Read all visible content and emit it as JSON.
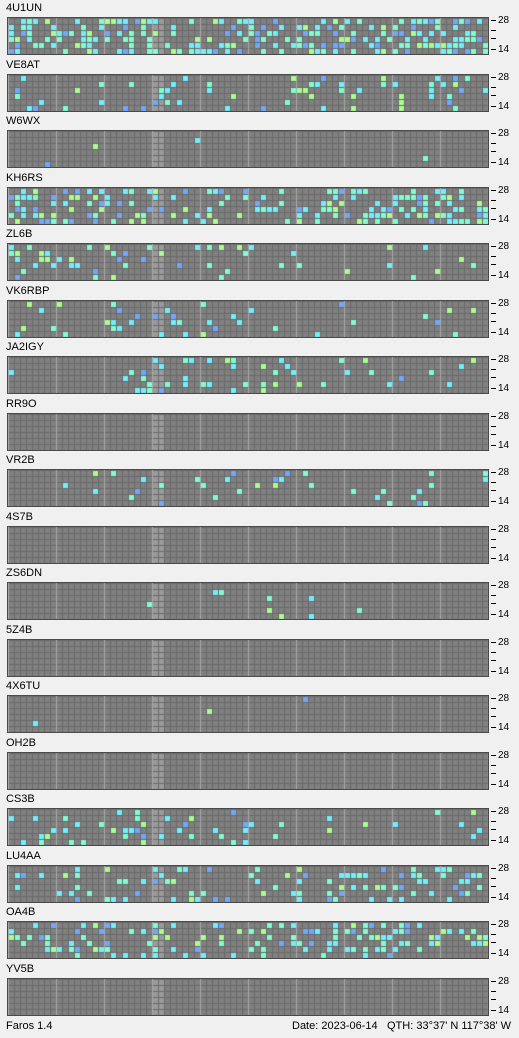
{
  "app": {
    "version_label": "Faros 1.4"
  },
  "footer": {
    "date_label": "Date: 2023-06-14",
    "qth_label": "QTH: 33°37' N  117°38' W"
  },
  "scale": {
    "top": "28",
    "bottom": "14"
  },
  "colors": {
    "background_grid": "#6a6a6a",
    "cell_empty": "#808080",
    "gridline": "#a8a8a8",
    "now_marker": "#9a9a9a",
    "signal_cyan": "#6ef0ff",
    "signal_aqua": "#7fffd0",
    "signal_green": "#a8ff8c",
    "signal_blue": "#6fa8ff",
    "signal_violet": "#8080ff"
  },
  "beacons": [
    {
      "name": "4U1UN",
      "density": 0.45,
      "seed": 11,
      "bias": "wide"
    },
    {
      "name": "VE8AT",
      "density": 0.14,
      "seed": 23,
      "bias": "wide"
    },
    {
      "name": "W6WX",
      "density": 0.01,
      "seed": 37,
      "bias": "sparse"
    },
    {
      "name": "KH6RS",
      "density": 0.4,
      "seed": 41,
      "bias": "wide"
    },
    {
      "name": "ZL6B",
      "density": 0.15,
      "seed": 53,
      "bias": "early"
    },
    {
      "name": "VK6RBP",
      "density": 0.09,
      "seed": 67,
      "bias": "early"
    },
    {
      "name": "JA2IGY",
      "density": 0.14,
      "seed": 71,
      "bias": "middle"
    },
    {
      "name": "RR9O",
      "density": 0.0,
      "seed": 83,
      "bias": "sparse"
    },
    {
      "name": "VR2B",
      "density": 0.11,
      "seed": 97,
      "bias": "middle"
    },
    {
      "name": "4S7B",
      "density": 0.0,
      "seed": 101,
      "bias": "sparse"
    },
    {
      "name": "ZS6DN",
      "density": 0.05,
      "seed": 113,
      "bias": "middle"
    },
    {
      "name": "5Z4B",
      "density": 0.005,
      "seed": 127,
      "bias": "sparse"
    },
    {
      "name": "4X6TU",
      "density": 0.005,
      "seed": 131,
      "bias": "sparse"
    },
    {
      "name": "OH2B",
      "density": 0.0,
      "seed": 139,
      "bias": "sparse"
    },
    {
      "name": "CS3B",
      "density": 0.14,
      "seed": 149,
      "bias": "early"
    },
    {
      "name": "LU4AA",
      "density": 0.2,
      "seed": 157,
      "bias": "wide"
    },
    {
      "name": "OA4B",
      "density": 0.25,
      "seed": 163,
      "bias": "wide"
    },
    {
      "name": "YV5B",
      "density": 0.0,
      "seed": 173,
      "bias": "sparse"
    }
  ]
}
